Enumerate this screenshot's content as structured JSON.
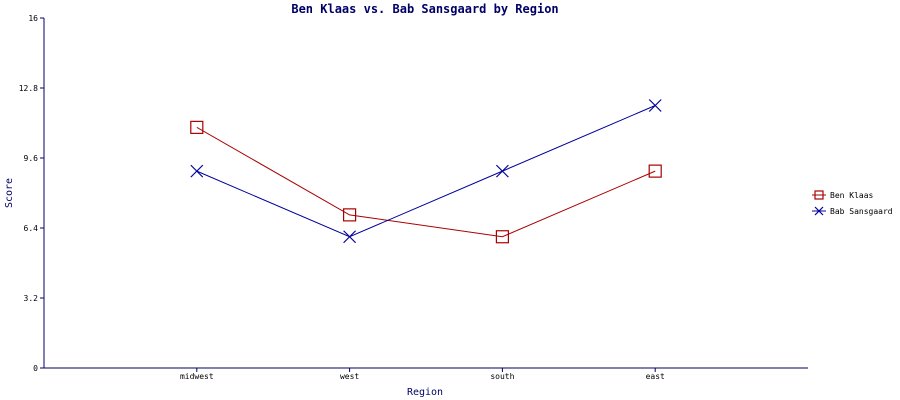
{
  "chart_data": {
    "type": "line",
    "title": "Ben Klaas vs. Bab Sansgaard by Region",
    "xlabel": "Region",
    "ylabel": "Score",
    "categories": [
      "midwest",
      "west",
      "south",
      "east"
    ],
    "ylim": [
      0,
      16
    ],
    "yticks": [
      "0",
      "3.2",
      "6.4",
      "9.6",
      "12.8",
      "16"
    ],
    "grid": false,
    "legend_position": "right",
    "series": [
      {
        "name": "Ben Klaas",
        "values": [
          11,
          7,
          6,
          9
        ],
        "color": "#aa0000",
        "marker": "square"
      },
      {
        "name": "Bab Sansgaard",
        "values": [
          9,
          6,
          9,
          12
        ],
        "color": "#000099",
        "marker": "x"
      }
    ]
  }
}
